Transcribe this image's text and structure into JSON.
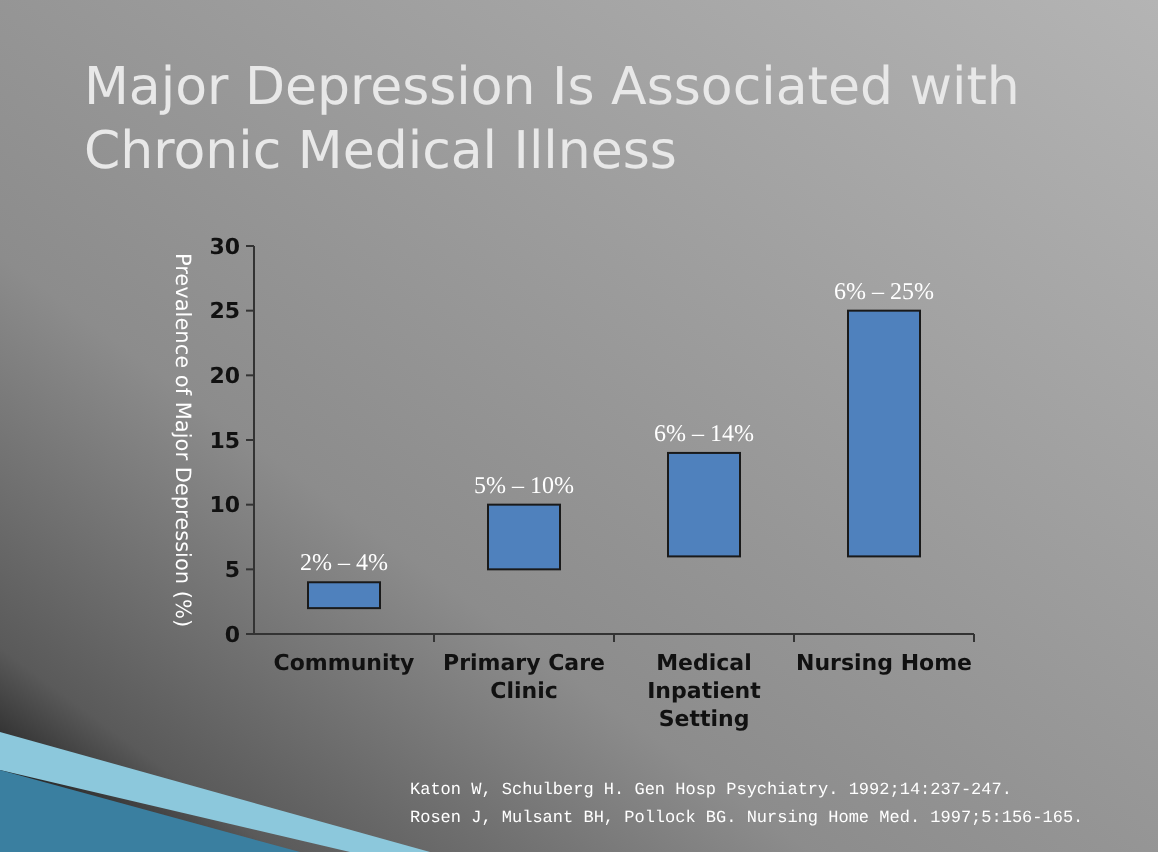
{
  "chart_data": {
    "type": "bar",
    "title": "Major Depression Is Associated with Chronic Medical Illness",
    "ylabel": "Prevalence of Major Depression (%)",
    "categories": [
      "Community",
      "Primary Care Clinic",
      "Medical Inpatient Setting",
      "Nursing Home"
    ],
    "values": [
      2,
      5,
      8,
      19
    ],
    "base": [
      2,
      5,
      6,
      6
    ],
    "color": "#4f81bd",
    "ylim": [
      0,
      30
    ],
    "yticks": [
      0,
      5,
      10,
      15,
      20,
      25,
      30
    ],
    "grid": false,
    "annotations": [
      {
        "text": "2% – 4%",
        "x": "Community",
        "y": 4
      },
      {
        "text": "5% – 10%",
        "x": "Primary Care Clinic",
        "y": 10
      },
      {
        "text": "6% – 14%",
        "x": "Medical Inpatient Setting",
        "y": 14
      },
      {
        "text": "6% – 25%",
        "x": "Nursing Home",
        "y": 25
      },
      "Katon W, Schulberg H. Gen Hosp Psychiatry. 1992;14:237-247.",
      "Rosen J, Mulsant BH, Pollock BG. Nursing Home Med. 1997;5:156-165."
    ]
  }
}
